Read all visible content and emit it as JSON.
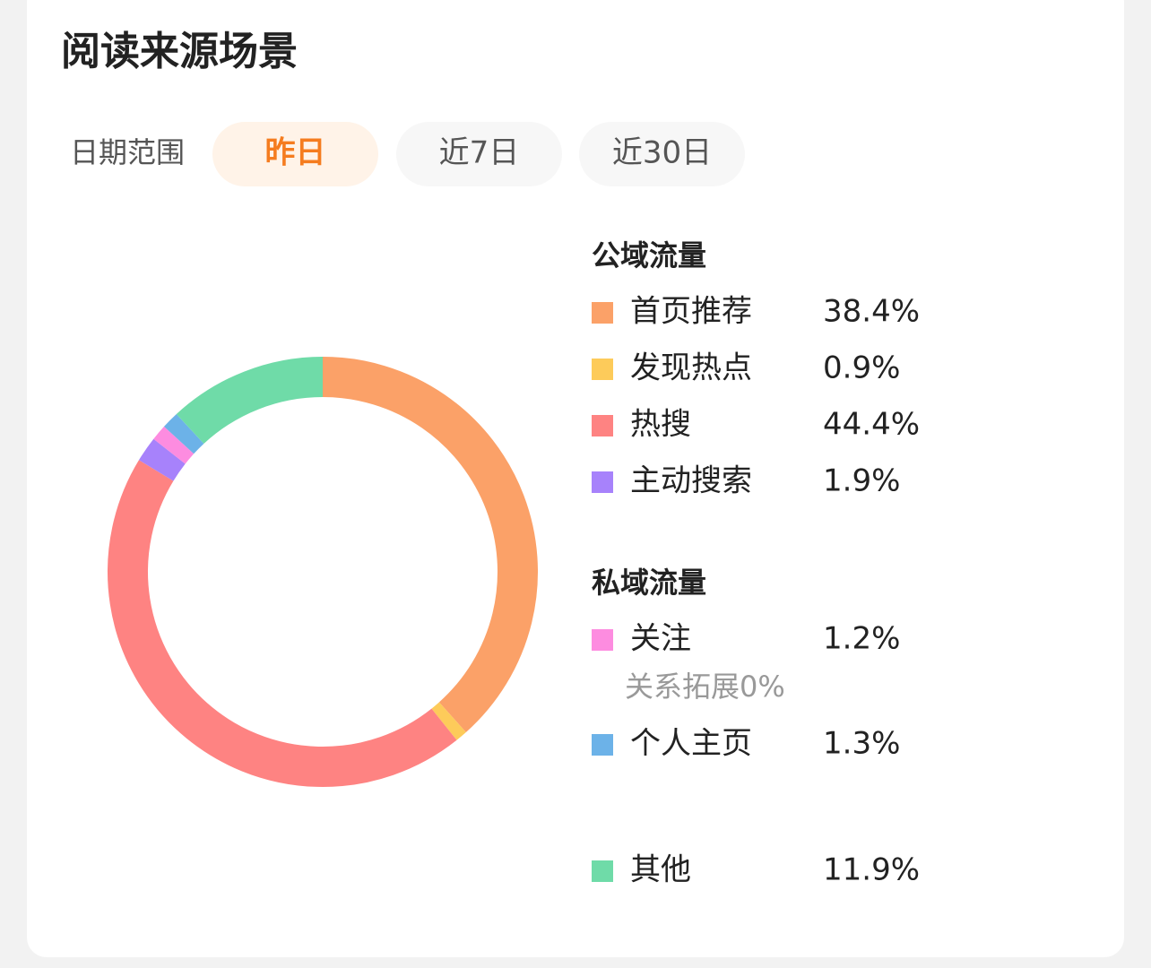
{
  "header": {
    "title": "阅读来源场景"
  },
  "date_filter": {
    "label": "日期范围",
    "options": [
      "昨日",
      "近7日",
      "近30日"
    ],
    "selected": 0
  },
  "chart_data": {
    "type": "pie",
    "donut": true,
    "series": [
      {
        "name": "公域流量",
        "categories": [
          "首页推荐",
          "发现热点",
          "热搜",
          "主动搜索"
        ],
        "values": [
          38.4,
          0.9,
          44.4,
          1.9
        ],
        "value_labels": [
          "38.4%",
          "0.9%",
          "44.4%",
          "1.9%"
        ],
        "colors": [
          "#fba168",
          "#fdcb5a",
          "#fe8382",
          "#a782fb"
        ]
      },
      {
        "name": "私域流量",
        "categories": [
          "关注",
          "个人主页"
        ],
        "values": [
          1.2,
          1.3
        ],
        "value_labels": [
          "1.2%",
          "1.3%"
        ],
        "colors": [
          "#fd8ce0",
          "#6cb2e8"
        ],
        "sub": {
          "name": "关系拓展",
          "value": 0,
          "value_label": "0%"
        }
      },
      {
        "categories": [
          "其他"
        ],
        "values": [
          11.9
        ],
        "value_labels": [
          "11.9%"
        ],
        "colors": [
          "#6fdba8"
        ]
      }
    ]
  }
}
